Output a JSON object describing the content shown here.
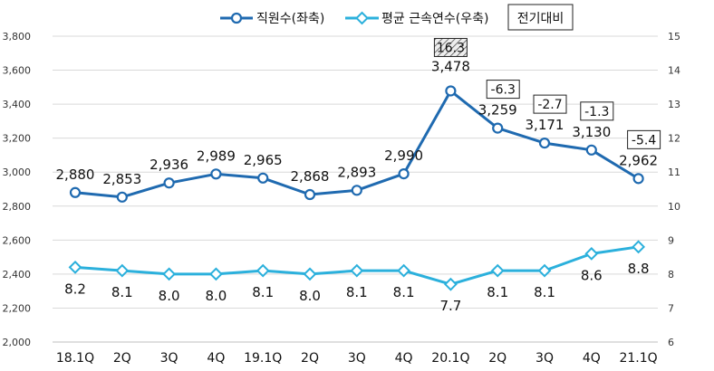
{
  "chart_data": {
    "type": "line",
    "categories": [
      "18.1Q",
      "2Q",
      "3Q",
      "4Q",
      "19.1Q",
      "2Q",
      "3Q",
      "4Q",
      "20.1Q",
      "2Q",
      "3Q",
      "4Q",
      "21.1Q"
    ],
    "series": [
      {
        "name": "직원수(좌축)",
        "axis": "left",
        "color": "#1f6ab0",
        "values": [
          2880,
          2853,
          2936,
          2989,
          2965,
          2868,
          2893,
          2990,
          3478,
          3259,
          3171,
          3130,
          2962
        ],
        "labels": [
          "2,880",
          "2,853",
          "2,936",
          "2,989",
          "2,965",
          "2,868",
          "2,893",
          "2,990",
          "3,478",
          "3,259",
          "3,171",
          "3,130",
          "2,962"
        ]
      },
      {
        "name": "평균 근속연수(우축)",
        "axis": "right",
        "color": "#2bb0dc",
        "values": [
          8.2,
          8.1,
          8.0,
          8.0,
          8.1,
          8.0,
          8.1,
          8.1,
          7.7,
          8.1,
          8.1,
          8.6,
          8.8
        ],
        "labels": [
          "8.2",
          "8.1",
          "8.0",
          "8.0",
          "8.1",
          "8.0",
          "8.1",
          "8.1",
          "7.7",
          "8.1",
          "8.1",
          "8.6",
          "8.8"
        ]
      }
    ],
    "y_left": {
      "min": 2000,
      "max": 3800,
      "ticks": [
        2000,
        2200,
        2400,
        2600,
        2800,
        3000,
        3200,
        3400,
        3600,
        3800
      ],
      "tick_labels": [
        "2,000",
        "2,200",
        "2,400",
        "2,600",
        "2,800",
        "3,000",
        "3,200",
        "3,400",
        "3,600",
        "3,800"
      ]
    },
    "y_right": {
      "min": 6,
      "max": 15,
      "ticks": [
        6,
        7,
        8,
        9,
        10,
        11,
        12,
        13,
        14,
        15
      ],
      "tick_labels": [
        "6",
        "7",
        "8",
        "9",
        "10",
        "11",
        "12",
        "13",
        "14",
        "15"
      ]
    },
    "grid": true,
    "legend_position": "top",
    "annotation_legend": "전기대비",
    "change_annotations": [
      {
        "index": 8,
        "text": "16.3",
        "hatched": true
      },
      {
        "index": 9,
        "text": "-6.3",
        "hatched": false
      },
      {
        "index": 10,
        "text": "-2.7",
        "hatched": false
      },
      {
        "index": 11,
        "text": "-1.3",
        "hatched": false
      },
      {
        "index": 12,
        "text": "-5.4",
        "hatched": false
      }
    ]
  }
}
